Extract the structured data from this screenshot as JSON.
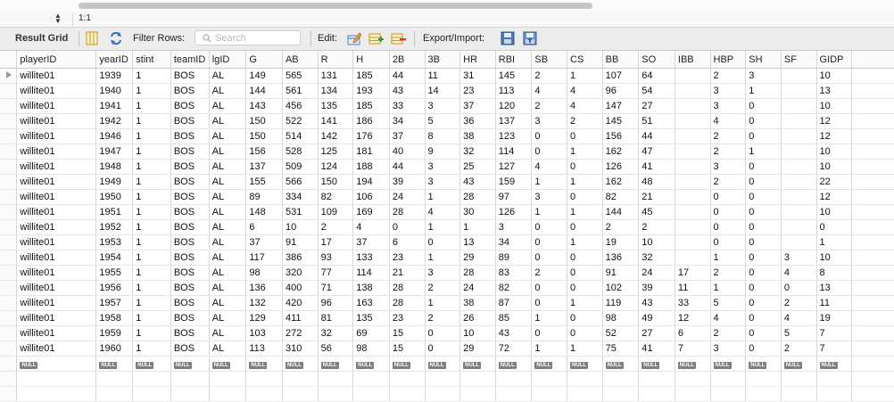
{
  "zoom": {
    "level": "1:1"
  },
  "toolbar": {
    "title": "Result Grid",
    "filter_label": "Filter Rows:",
    "search_placeholder": "Search",
    "edit_label": "Edit:",
    "export_label": "Export/Import:"
  },
  "null_label": "NULL",
  "columns": [
    "playerID",
    "yearID",
    "stint",
    "teamID",
    "lgID",
    "G",
    "AB",
    "R",
    "H",
    "2B",
    "3B",
    "HR",
    "RBI",
    "SB",
    "CS",
    "BB",
    "SO",
    "IBB",
    "HBP",
    "SH",
    "SF",
    "GIDP"
  ],
  "rows": [
    [
      "willite01",
      "1939",
      "1",
      "BOS",
      "AL",
      "149",
      "565",
      "131",
      "185",
      "44",
      "11",
      "31",
      "145",
      "2",
      "1",
      "107",
      "64",
      "",
      "2",
      "3",
      "",
      "10"
    ],
    [
      "willite01",
      "1940",
      "1",
      "BOS",
      "AL",
      "144",
      "561",
      "134",
      "193",
      "43",
      "14",
      "23",
      "113",
      "4",
      "4",
      "96",
      "54",
      "",
      "3",
      "1",
      "",
      "13"
    ],
    [
      "willite01",
      "1941",
      "1",
      "BOS",
      "AL",
      "143",
      "456",
      "135",
      "185",
      "33",
      "3",
      "37",
      "120",
      "2",
      "4",
      "147",
      "27",
      "",
      "3",
      "0",
      "",
      "10"
    ],
    [
      "willite01",
      "1942",
      "1",
      "BOS",
      "AL",
      "150",
      "522",
      "141",
      "186",
      "34",
      "5",
      "36",
      "137",
      "3",
      "2",
      "145",
      "51",
      "",
      "4",
      "0",
      "",
      "12"
    ],
    [
      "willite01",
      "1946",
      "1",
      "BOS",
      "AL",
      "150",
      "514",
      "142",
      "176",
      "37",
      "8",
      "38",
      "123",
      "0",
      "0",
      "156",
      "44",
      "",
      "2",
      "0",
      "",
      "12"
    ],
    [
      "willite01",
      "1947",
      "1",
      "BOS",
      "AL",
      "156",
      "528",
      "125",
      "181",
      "40",
      "9",
      "32",
      "114",
      "0",
      "1",
      "162",
      "47",
      "",
      "2",
      "1",
      "",
      "10"
    ],
    [
      "willite01",
      "1948",
      "1",
      "BOS",
      "AL",
      "137",
      "509",
      "124",
      "188",
      "44",
      "3",
      "25",
      "127",
      "4",
      "0",
      "126",
      "41",
      "",
      "3",
      "0",
      "",
      "10"
    ],
    [
      "willite01",
      "1949",
      "1",
      "BOS",
      "AL",
      "155",
      "566",
      "150",
      "194",
      "39",
      "3",
      "43",
      "159",
      "1",
      "1",
      "162",
      "48",
      "",
      "2",
      "0",
      "",
      "22"
    ],
    [
      "willite01",
      "1950",
      "1",
      "BOS",
      "AL",
      "89",
      "334",
      "82",
      "106",
      "24",
      "1",
      "28",
      "97",
      "3",
      "0",
      "82",
      "21",
      "",
      "0",
      "0",
      "",
      "12"
    ],
    [
      "willite01",
      "1951",
      "1",
      "BOS",
      "AL",
      "148",
      "531",
      "109",
      "169",
      "28",
      "4",
      "30",
      "126",
      "1",
      "1",
      "144",
      "45",
      "",
      "0",
      "0",
      "",
      "10"
    ],
    [
      "willite01",
      "1952",
      "1",
      "BOS",
      "AL",
      "6",
      "10",
      "2",
      "4",
      "0",
      "1",
      "1",
      "3",
      "0",
      "0",
      "2",
      "2",
      "",
      "0",
      "0",
      "",
      "0"
    ],
    [
      "willite01",
      "1953",
      "1",
      "BOS",
      "AL",
      "37",
      "91",
      "17",
      "37",
      "6",
      "0",
      "13",
      "34",
      "0",
      "1",
      "19",
      "10",
      "",
      "0",
      "0",
      "",
      "1"
    ],
    [
      "willite01",
      "1954",
      "1",
      "BOS",
      "AL",
      "117",
      "386",
      "93",
      "133",
      "23",
      "1",
      "29",
      "89",
      "0",
      "0",
      "136",
      "32",
      "",
      "1",
      "0",
      "3",
      "10"
    ],
    [
      "willite01",
      "1955",
      "1",
      "BOS",
      "AL",
      "98",
      "320",
      "77",
      "114",
      "21",
      "3",
      "28",
      "83",
      "2",
      "0",
      "91",
      "24",
      "17",
      "2",
      "0",
      "4",
      "8"
    ],
    [
      "willite01",
      "1956",
      "1",
      "BOS",
      "AL",
      "136",
      "400",
      "71",
      "138",
      "28",
      "2",
      "24",
      "82",
      "0",
      "0",
      "102",
      "39",
      "11",
      "1",
      "0",
      "0",
      "13"
    ],
    [
      "willite01",
      "1957",
      "1",
      "BOS",
      "AL",
      "132",
      "420",
      "96",
      "163",
      "28",
      "1",
      "38",
      "87",
      "0",
      "1",
      "119",
      "43",
      "33",
      "5",
      "0",
      "2",
      "11"
    ],
    [
      "willite01",
      "1958",
      "1",
      "BOS",
      "AL",
      "129",
      "411",
      "81",
      "135",
      "23",
      "2",
      "26",
      "85",
      "1",
      "0",
      "98",
      "49",
      "12",
      "4",
      "0",
      "4",
      "19"
    ],
    [
      "willite01",
      "1959",
      "1",
      "BOS",
      "AL",
      "103",
      "272",
      "32",
      "69",
      "15",
      "0",
      "10",
      "43",
      "0",
      "0",
      "52",
      "27",
      "6",
      "2",
      "0",
      "5",
      "7"
    ],
    [
      "willite01",
      "1960",
      "1",
      "BOS",
      "AL",
      "113",
      "310",
      "56",
      "98",
      "15",
      "0",
      "29",
      "72",
      "1",
      "1",
      "75",
      "41",
      "7",
      "3",
      "0",
      "2",
      "7"
    ]
  ]
}
